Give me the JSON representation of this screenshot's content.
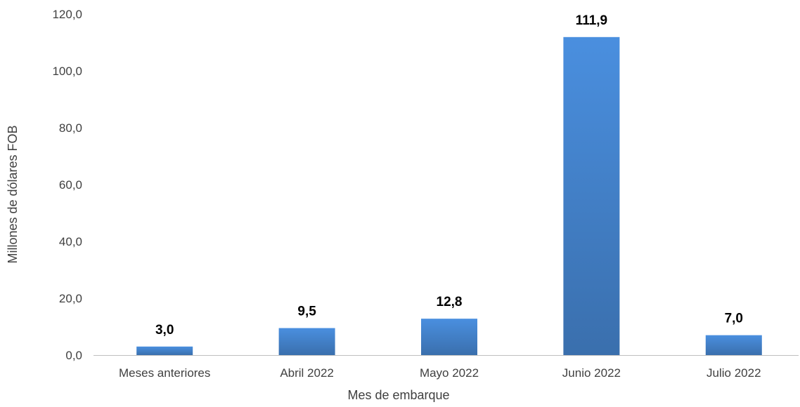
{
  "chart_data": {
    "type": "bar",
    "title": "",
    "xlabel": "Mes de embarque",
    "ylabel": "Millones de dólares FOB",
    "categories": [
      "Meses anteriores",
      "Abril 2022",
      "Mayo 2022",
      "Junio 2022",
      "Julio 2022"
    ],
    "values": [
      3.0,
      9.5,
      12.8,
      111.9,
      7.0
    ],
    "value_labels": [
      "3,0",
      "9,5",
      "12,8",
      "111,9",
      "7,0"
    ],
    "ylim": [
      0,
      120
    ],
    "yticks": [
      0,
      20,
      40,
      60,
      80,
      100,
      120
    ],
    "ytick_labels": [
      "0,0",
      "20,0",
      "40,0",
      "60,0",
      "80,0",
      "100,0",
      "120,0"
    ],
    "grid": false,
    "legend": "none",
    "colors": {
      "bar_top": "#4a8fdf",
      "bar_bottom": "#3a6fad",
      "axis": "#bfbfbf",
      "text": "#404040",
      "data_label": "#000000"
    }
  }
}
